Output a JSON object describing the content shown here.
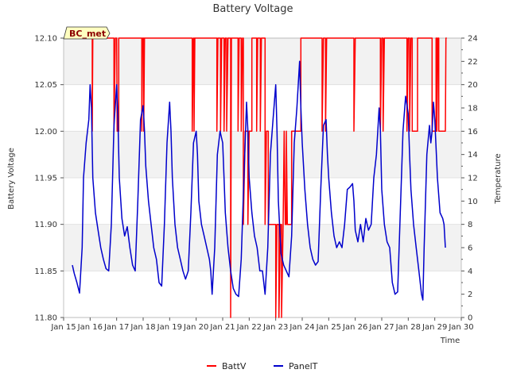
{
  "chart_data": {
    "type": "line",
    "title": "Battery Voltage",
    "station_tag": "BC_met",
    "xlabel": "Time",
    "ylabel": "Battery Voltage",
    "y2label": "Temperature",
    "xlim": [
      15,
      30
    ],
    "ylim": [
      11.8,
      12.1
    ],
    "y2lim": [
      0,
      24
    ],
    "x_ticks": [
      15,
      16,
      17,
      18,
      19,
      20,
      21,
      22,
      23,
      24,
      25,
      26,
      27,
      28,
      29,
      30
    ],
    "x_tick_labels": [
      "Jan 15",
      "Jan 16",
      "Jan 17",
      "Jan 18",
      "Jan 19",
      "Jan 20",
      "Jan 21",
      "Jan 22",
      "Jan 23",
      "Jan 24",
      "Jan 25",
      "Jan 26",
      "Jan 27",
      "Jan 28",
      "Jan 29",
      "Jan 30"
    ],
    "y_ticks": [
      11.8,
      11.85,
      11.9,
      11.95,
      12.0,
      12.05,
      12.1
    ],
    "y_tick_labels": [
      "11.80",
      "11.85",
      "11.90",
      "11.95",
      "12.00",
      "12.05",
      "12.10"
    ],
    "y2_ticks": [
      0,
      2,
      4,
      6,
      8,
      10,
      12,
      14,
      16,
      18,
      20,
      22,
      24
    ],
    "y2_tick_labels": [
      "0",
      "2",
      "4",
      "6",
      "8",
      "10",
      "12",
      "14",
      "16",
      "18",
      "20",
      "22",
      "24"
    ],
    "series": [
      {
        "name": "BattV",
        "color": "#ff0000",
        "axis": "left",
        "points": [
          [
            16.0,
            12.1
          ],
          [
            16.08,
            12.1
          ],
          [
            16.08,
            12.0
          ],
          [
            16.1,
            12.1
          ],
          [
            16.9,
            12.1
          ],
          [
            16.9,
            12.0
          ],
          [
            16.95,
            12.1
          ],
          [
            17.0,
            12.1
          ],
          [
            17.02,
            12.0
          ],
          [
            17.08,
            12.0
          ],
          [
            17.08,
            12.1
          ],
          [
            17.95,
            12.1
          ],
          [
            17.95,
            12.0
          ],
          [
            17.98,
            12.1
          ],
          [
            18.02,
            12.1
          ],
          [
            18.02,
            12.0
          ],
          [
            18.05,
            12.1
          ],
          [
            19.85,
            12.1
          ],
          [
            19.85,
            12.0
          ],
          [
            19.9,
            12.1
          ],
          [
            19.92,
            12.1
          ],
          [
            19.92,
            12.0
          ],
          [
            19.95,
            12.1
          ],
          [
            20.78,
            12.1
          ],
          [
            20.78,
            12.0
          ],
          [
            20.82,
            12.1
          ],
          [
            20.92,
            12.1
          ],
          [
            20.92,
            12.0
          ],
          [
            20.96,
            12.1
          ],
          [
            21.05,
            12.1
          ],
          [
            21.05,
            12.0
          ],
          [
            21.1,
            12.1
          ],
          [
            21.15,
            12.1
          ],
          [
            21.15,
            12.0
          ],
          [
            21.2,
            12.1
          ],
          [
            21.3,
            12.1
          ],
          [
            21.3,
            11.8
          ],
          [
            21.33,
            12.1
          ],
          [
            21.58,
            12.1
          ],
          [
            21.58,
            12.0
          ],
          [
            21.62,
            12.1
          ],
          [
            21.7,
            12.1
          ],
          [
            21.7,
            12.0
          ],
          [
            21.75,
            12.1
          ],
          [
            21.78,
            12.1
          ],
          [
            21.78,
            11.9
          ],
          [
            21.85,
            12.0
          ],
          [
            21.95,
            12.0
          ],
          [
            21.95,
            11.9
          ],
          [
            22.0,
            12.0
          ],
          [
            22.1,
            12.0
          ],
          [
            22.1,
            12.1
          ],
          [
            22.28,
            12.1
          ],
          [
            22.28,
            12.0
          ],
          [
            22.32,
            12.1
          ],
          [
            22.42,
            12.1
          ],
          [
            22.42,
            12.0
          ],
          [
            22.46,
            12.1
          ],
          [
            22.6,
            12.1
          ],
          [
            22.6,
            11.9
          ],
          [
            22.65,
            12.0
          ],
          [
            22.72,
            12.0
          ],
          [
            22.72,
            11.9
          ],
          [
            23.0,
            11.9
          ],
          [
            23.0,
            11.8
          ],
          [
            23.05,
            11.9
          ],
          [
            23.12,
            11.9
          ],
          [
            23.12,
            11.8
          ],
          [
            23.18,
            11.9
          ],
          [
            23.22,
            11.9
          ],
          [
            23.22,
            11.8
          ],
          [
            23.28,
            11.9
          ],
          [
            23.32,
            12.0
          ],
          [
            23.36,
            11.9
          ],
          [
            23.4,
            11.9
          ],
          [
            23.4,
            12.0
          ],
          [
            23.44,
            11.9
          ],
          [
            23.6,
            11.9
          ],
          [
            23.6,
            12.0
          ],
          [
            23.95,
            12.0
          ],
          [
            23.95,
            12.1
          ],
          [
            24.75,
            12.1
          ],
          [
            24.75,
            12.0
          ],
          [
            24.8,
            12.1
          ],
          [
            24.88,
            12.1
          ],
          [
            24.88,
            12.0
          ],
          [
            24.92,
            12.1
          ],
          [
            25.95,
            12.1
          ],
          [
            25.95,
            12.0
          ],
          [
            26.0,
            12.1
          ],
          [
            26.95,
            12.1
          ],
          [
            26.95,
            12.0
          ],
          [
            27.0,
            12.1
          ],
          [
            27.05,
            12.1
          ],
          [
            27.05,
            12.0
          ],
          [
            27.1,
            12.1
          ],
          [
            27.95,
            12.1
          ],
          [
            27.95,
            12.0
          ],
          [
            28.0,
            12.1
          ],
          [
            28.05,
            12.1
          ],
          [
            28.05,
            12.0
          ],
          [
            28.1,
            12.1
          ],
          [
            28.15,
            12.1
          ],
          [
            28.15,
            12.0
          ],
          [
            28.35,
            12.0
          ],
          [
            28.35,
            12.1
          ],
          [
            28.9,
            12.1
          ],
          [
            28.9,
            12.0
          ],
          [
            29.05,
            12.0
          ],
          [
            29.05,
            12.1
          ],
          [
            29.08,
            12.1
          ],
          [
            29.08,
            12.0
          ],
          [
            29.12,
            12.1
          ],
          [
            29.15,
            12.1
          ],
          [
            29.15,
            12.0
          ],
          [
            29.4,
            12.0
          ],
          [
            29.42,
            12.1
          ],
          [
            29.45,
            12.1
          ]
        ]
      },
      {
        "name": "PanelT",
        "color": "#0000cc",
        "axis": "right",
        "points": [
          [
            15.33,
            4.5
          ],
          [
            15.4,
            3.8
          ],
          [
            15.5,
            3.0
          ],
          [
            15.6,
            2.1
          ],
          [
            15.7,
            6.0
          ],
          [
            15.75,
            12.0
          ],
          [
            15.85,
            15.0
          ],
          [
            15.95,
            17.0
          ],
          [
            16.0,
            20.0
          ],
          [
            16.05,
            18.0
          ],
          [
            16.1,
            12.0
          ],
          [
            16.2,
            9.0
          ],
          [
            16.3,
            7.5
          ],
          [
            16.4,
            6.0
          ],
          [
            16.5,
            5.0
          ],
          [
            16.6,
            4.2
          ],
          [
            16.7,
            4.0
          ],
          [
            16.8,
            8.0
          ],
          [
            16.9,
            16.5
          ],
          [
            17.0,
            20.0
          ],
          [
            17.05,
            17.0
          ],
          [
            17.1,
            12.0
          ],
          [
            17.2,
            8.5
          ],
          [
            17.3,
            7.0
          ],
          [
            17.4,
            7.8
          ],
          [
            17.5,
            6.0
          ],
          [
            17.6,
            4.5
          ],
          [
            17.7,
            4.0
          ],
          [
            17.8,
            10.0
          ],
          [
            17.9,
            17.0
          ],
          [
            18.0,
            18.2
          ],
          [
            18.05,
            16.0
          ],
          [
            18.1,
            13.0
          ],
          [
            18.2,
            10.0
          ],
          [
            18.3,
            8.0
          ],
          [
            18.4,
            6.0
          ],
          [
            18.5,
            5.0
          ],
          [
            18.6,
            3.0
          ],
          [
            18.7,
            2.7
          ],
          [
            18.8,
            8.0
          ],
          [
            18.9,
            15.0
          ],
          [
            19.0,
            18.5
          ],
          [
            19.05,
            16.0
          ],
          [
            19.1,
            12.0
          ],
          [
            19.2,
            8.0
          ],
          [
            19.3,
            6.0
          ],
          [
            19.4,
            5.0
          ],
          [
            19.5,
            4.0
          ],
          [
            19.6,
            3.3
          ],
          [
            19.7,
            4.0
          ],
          [
            19.8,
            9.0
          ],
          [
            19.9,
            15.0
          ],
          [
            20.0,
            16.0
          ],
          [
            20.05,
            14.0
          ],
          [
            20.1,
            10.0
          ],
          [
            20.2,
            8.0
          ],
          [
            20.3,
            7.0
          ],
          [
            20.4,
            6.0
          ],
          [
            20.5,
            5.0
          ],
          [
            20.55,
            4.0
          ],
          [
            20.6,
            2.0
          ],
          [
            20.7,
            6.0
          ],
          [
            20.8,
            14.0
          ],
          [
            20.9,
            16.0
          ],
          [
            21.0,
            15.0
          ],
          [
            21.05,
            12.0
          ],
          [
            21.1,
            9.0
          ],
          [
            21.2,
            6.0
          ],
          [
            21.3,
            4.0
          ],
          [
            21.4,
            2.5
          ],
          [
            21.5,
            2.0
          ],
          [
            21.6,
            1.8
          ],
          [
            21.7,
            5.0
          ],
          [
            21.8,
            12.0
          ],
          [
            21.9,
            18.5
          ],
          [
            21.95,
            16.0
          ],
          [
            22.0,
            12.0
          ],
          [
            22.1,
            9.0
          ],
          [
            22.2,
            7.0
          ],
          [
            22.3,
            6.0
          ],
          [
            22.4,
            4.0
          ],
          [
            22.5,
            4.0
          ],
          [
            22.6,
            2.0
          ],
          [
            22.7,
            6.0
          ],
          [
            22.8,
            14.0
          ],
          [
            22.9,
            17.0
          ],
          [
            23.0,
            20.0
          ],
          [
            23.05,
            16.0
          ],
          [
            23.1,
            10.0
          ],
          [
            23.2,
            5.5
          ],
          [
            23.3,
            4.5
          ],
          [
            23.4,
            4.0
          ],
          [
            23.5,
            3.5
          ],
          [
            23.6,
            7.0
          ],
          [
            23.7,
            15.0
          ],
          [
            23.8,
            18.0
          ],
          [
            23.9,
            22.0
          ],
          [
            23.95,
            18.0
          ],
          [
            24.0,
            15.0
          ],
          [
            24.1,
            11.0
          ],
          [
            24.2,
            8.0
          ],
          [
            24.3,
            6.0
          ],
          [
            24.4,
            5.0
          ],
          [
            24.5,
            4.5
          ],
          [
            24.6,
            4.8
          ],
          [
            24.7,
            11.0
          ],
          [
            24.8,
            16.5
          ],
          [
            24.9,
            17.0
          ],
          [
            24.95,
            14.0
          ],
          [
            25.0,
            12.0
          ],
          [
            25.1,
            9.0
          ],
          [
            25.2,
            7.0
          ],
          [
            25.3,
            6.0
          ],
          [
            25.4,
            6.5
          ],
          [
            25.5,
            6.0
          ],
          [
            25.6,
            8.0
          ],
          [
            25.7,
            11.0
          ],
          [
            25.8,
            11.2
          ],
          [
            25.9,
            11.5
          ],
          [
            25.95,
            10.0
          ],
          [
            26.0,
            7.5
          ],
          [
            26.1,
            6.5
          ],
          [
            26.2,
            8.0
          ],
          [
            26.3,
            6.5
          ],
          [
            26.4,
            8.5
          ],
          [
            26.5,
            7.5
          ],
          [
            26.6,
            8.0
          ],
          [
            26.7,
            12.0
          ],
          [
            26.8,
            14.0
          ],
          [
            26.9,
            18.0
          ],
          [
            26.95,
            16.0
          ],
          [
            27.0,
            11.0
          ],
          [
            27.1,
            8.0
          ],
          [
            27.2,
            6.5
          ],
          [
            27.3,
            6.0
          ],
          [
            27.4,
            3.0
          ],
          [
            27.5,
            2.0
          ],
          [
            27.6,
            2.2
          ],
          [
            27.7,
            9.0
          ],
          [
            27.8,
            16.0
          ],
          [
            27.9,
            19.0
          ],
          [
            28.0,
            17.5
          ],
          [
            28.05,
            14.0
          ],
          [
            28.1,
            11.0
          ],
          [
            28.2,
            8.0
          ],
          [
            28.3,
            6.0
          ],
          [
            28.4,
            4.0
          ],
          [
            28.5,
            2.0
          ],
          [
            28.55,
            1.5
          ],
          [
            28.6,
            6.0
          ],
          [
            28.7,
            14.0
          ],
          [
            28.8,
            16.5
          ],
          [
            28.85,
            15.0
          ],
          [
            28.9,
            16.0
          ],
          [
            28.95,
            18.5
          ],
          [
            29.0,
            17.0
          ],
          [
            29.1,
            12.0
          ],
          [
            29.2,
            9.0
          ],
          [
            29.3,
            8.5
          ],
          [
            29.35,
            8.0
          ],
          [
            29.4,
            6.0
          ]
        ]
      }
    ]
  }
}
